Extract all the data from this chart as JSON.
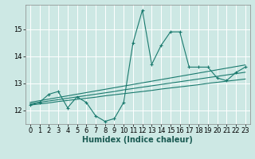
{
  "title": "",
  "xlabel": "Humidex (Indice chaleur)",
  "ylabel": "",
  "bg_color": "#cde8e4",
  "grid_color": "#ffffff",
  "line_color": "#1a7a6e",
  "x_data": [
    0,
    1,
    2,
    3,
    4,
    5,
    6,
    7,
    8,
    9,
    10,
    11,
    12,
    13,
    14,
    15,
    16,
    17,
    18,
    19,
    20,
    21,
    22,
    23
  ],
  "main_y": [
    12.2,
    12.3,
    12.6,
    12.7,
    12.1,
    12.5,
    12.3,
    11.8,
    11.6,
    11.7,
    12.3,
    14.5,
    15.7,
    13.7,
    14.4,
    14.9,
    14.9,
    13.6,
    13.6,
    13.6,
    13.2,
    13.1,
    13.4,
    13.6
  ],
  "trend1_y": [
    12.2,
    12.24,
    12.28,
    12.33,
    12.37,
    12.41,
    12.45,
    12.49,
    12.54,
    12.58,
    12.62,
    12.66,
    12.7,
    12.74,
    12.79,
    12.83,
    12.87,
    12.91,
    12.95,
    13.0,
    13.04,
    13.08,
    13.12,
    13.16
  ],
  "trend2_y": [
    12.25,
    12.3,
    12.35,
    12.4,
    12.45,
    12.5,
    12.55,
    12.6,
    12.65,
    12.7,
    12.76,
    12.81,
    12.86,
    12.91,
    12.96,
    13.01,
    13.06,
    13.11,
    13.16,
    13.21,
    13.26,
    13.31,
    13.36,
    13.41
  ],
  "trend3_y": [
    12.3,
    12.36,
    12.42,
    12.48,
    12.54,
    12.6,
    12.66,
    12.72,
    12.78,
    12.84,
    12.9,
    12.96,
    13.02,
    13.08,
    13.14,
    13.2,
    13.26,
    13.32,
    13.38,
    13.44,
    13.5,
    13.56,
    13.62,
    13.68
  ],
  "ylim": [
    11.5,
    15.9
  ],
  "yticks": [
    12,
    13,
    14,
    15
  ],
  "xticks": [
    0,
    1,
    2,
    3,
    4,
    5,
    6,
    7,
    8,
    9,
    10,
    11,
    12,
    13,
    14,
    15,
    16,
    17,
    18,
    19,
    20,
    21,
    22,
    23
  ],
  "tick_fontsize": 6.0,
  "xlabel_fontsize": 7.0
}
